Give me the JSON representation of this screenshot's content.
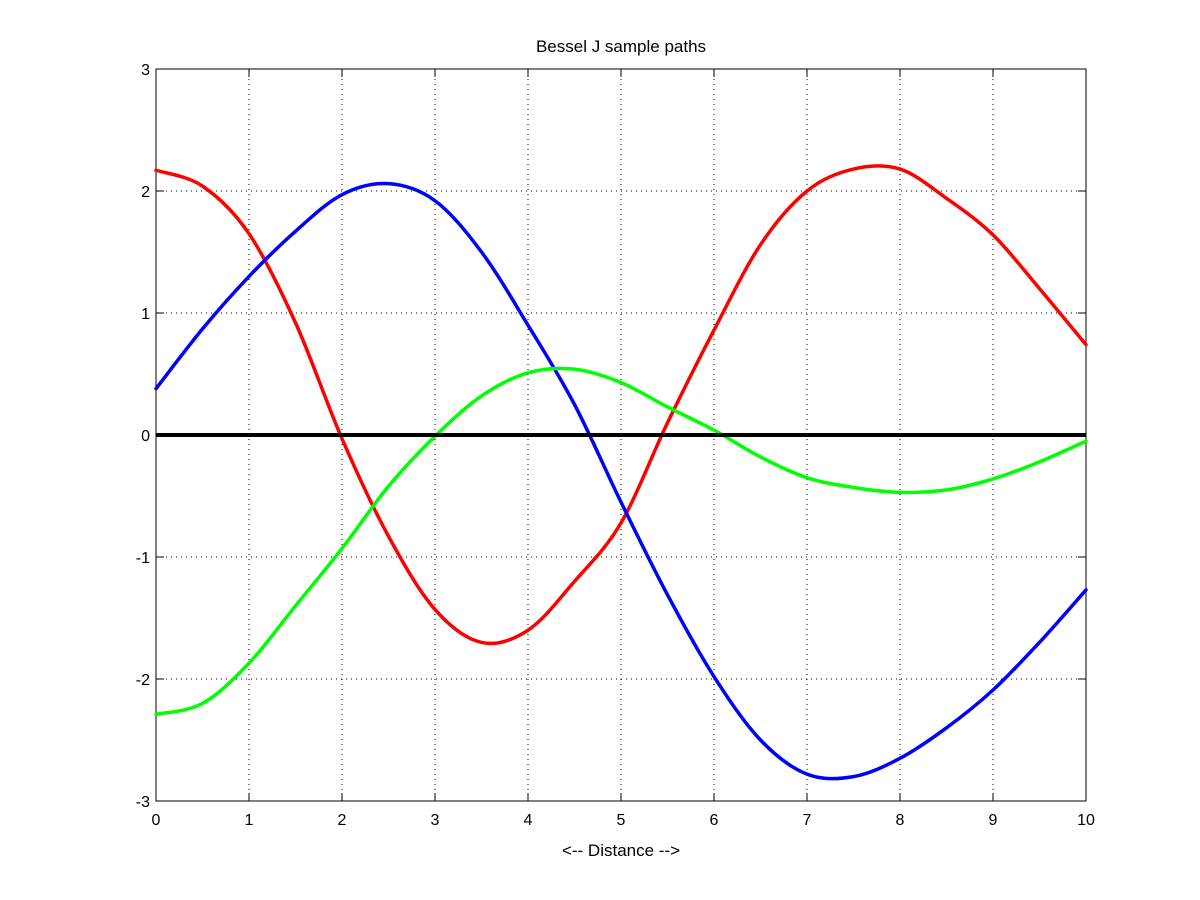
{
  "chart_data": {
    "type": "line",
    "title": "Bessel J sample paths",
    "xlabel": "<-- Distance -->",
    "ylabel": "",
    "xlim": [
      0,
      10
    ],
    "ylim": [
      -3,
      3
    ],
    "grid": true,
    "x_ticks": [
      0,
      1,
      2,
      3,
      4,
      5,
      6,
      7,
      8,
      9,
      10
    ],
    "y_ticks": [
      -3,
      -2,
      -1,
      0,
      1,
      2,
      3
    ],
    "x_tick_labels": [
      "0",
      "1",
      "2",
      "3",
      "4",
      "5",
      "6",
      "7",
      "8",
      "9",
      "10"
    ],
    "y_tick_labels": [
      "-3",
      "-2",
      "-1",
      "0",
      "1",
      "2",
      "3"
    ],
    "x": [
      0,
      0.5,
      1,
      1.5,
      2,
      2.5,
      3,
      3.5,
      4,
      4.5,
      5,
      5.5,
      6,
      6.5,
      7,
      7.5,
      8,
      8.5,
      9,
      9.5,
      10
    ],
    "series": [
      {
        "color": "#ff0000",
        "values": [
          2.17,
          2.04,
          1.65,
          0.92,
          -0.03,
          -0.83,
          -1.43,
          -1.7,
          -1.6,
          -1.2,
          -0.72,
          0.1,
          0.86,
          1.56,
          2.0,
          2.18,
          2.18,
          1.94,
          1.64,
          1.2,
          0.74
        ]
      },
      {
        "color": "#0000ff",
        "values": [
          0.38,
          0.87,
          1.3,
          1.67,
          1.97,
          2.06,
          1.92,
          1.5,
          0.9,
          0.25,
          -0.55,
          -1.31,
          -1.98,
          -2.5,
          -2.78,
          -2.8,
          -2.65,
          -2.4,
          -2.09,
          -1.7,
          -1.27
        ]
      },
      {
        "color": "#00ff00",
        "values": [
          -2.29,
          -2.2,
          -1.87,
          -1.4,
          -0.93,
          -0.42,
          -0.01,
          0.32,
          0.51,
          0.54,
          0.43,
          0.23,
          0.04,
          -0.18,
          -0.35,
          -0.43,
          -0.47,
          -0.45,
          -0.36,
          -0.22,
          -0.05
        ]
      },
      {
        "color": "#000000",
        "values": [
          0,
          0,
          0,
          0,
          0,
          0,
          0,
          0,
          0,
          0,
          0,
          0,
          0,
          0,
          0,
          0,
          0,
          0,
          0,
          0,
          0
        ]
      }
    ]
  }
}
